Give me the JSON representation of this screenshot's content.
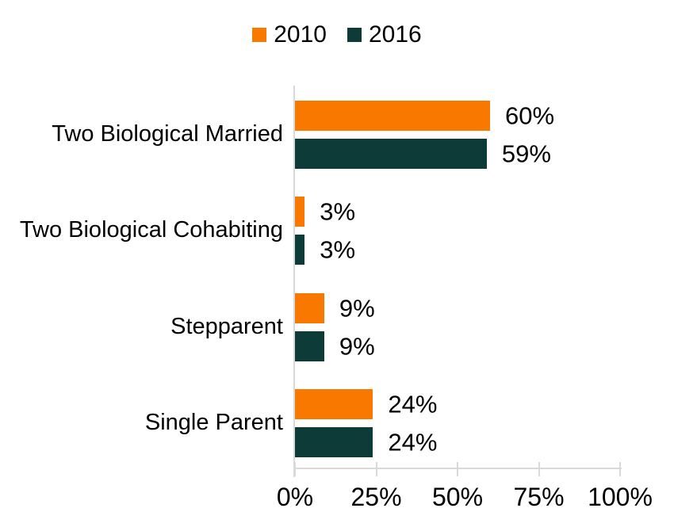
{
  "chart_data": {
    "type": "bar",
    "orientation": "horizontal",
    "title": "",
    "xlabel": "",
    "ylabel": "",
    "categories": [
      "Two Biological Married",
      "Two Biological Cohabiting",
      "Stepparent",
      "Single Parent"
    ],
    "series": [
      {
        "name": "2010",
        "color": "#F97800",
        "values": [
          60,
          3,
          9,
          24
        ],
        "value_labels": [
          "60%",
          "3%",
          "9%",
          "24%"
        ]
      },
      {
        "name": "2016",
        "color": "#0C3B38",
        "values": [
          59,
          3,
          9,
          24
        ],
        "value_labels": [
          "59%",
          "3%",
          "9%",
          "24%"
        ]
      }
    ],
    "xlim": [
      0,
      100
    ],
    "x_ticks": [
      {
        "value": 0,
        "label": "0%"
      },
      {
        "value": 25,
        "label": "25%"
      },
      {
        "value": 50,
        "label": "50%"
      },
      {
        "value": 75,
        "label": "75%"
      },
      {
        "value": 100,
        "label": "100%"
      }
    ],
    "legend_position": "top-center",
    "grid": false,
    "axis_color": "#D9D9D9",
    "text_color": "#000000",
    "background": "#FFFFFF"
  }
}
